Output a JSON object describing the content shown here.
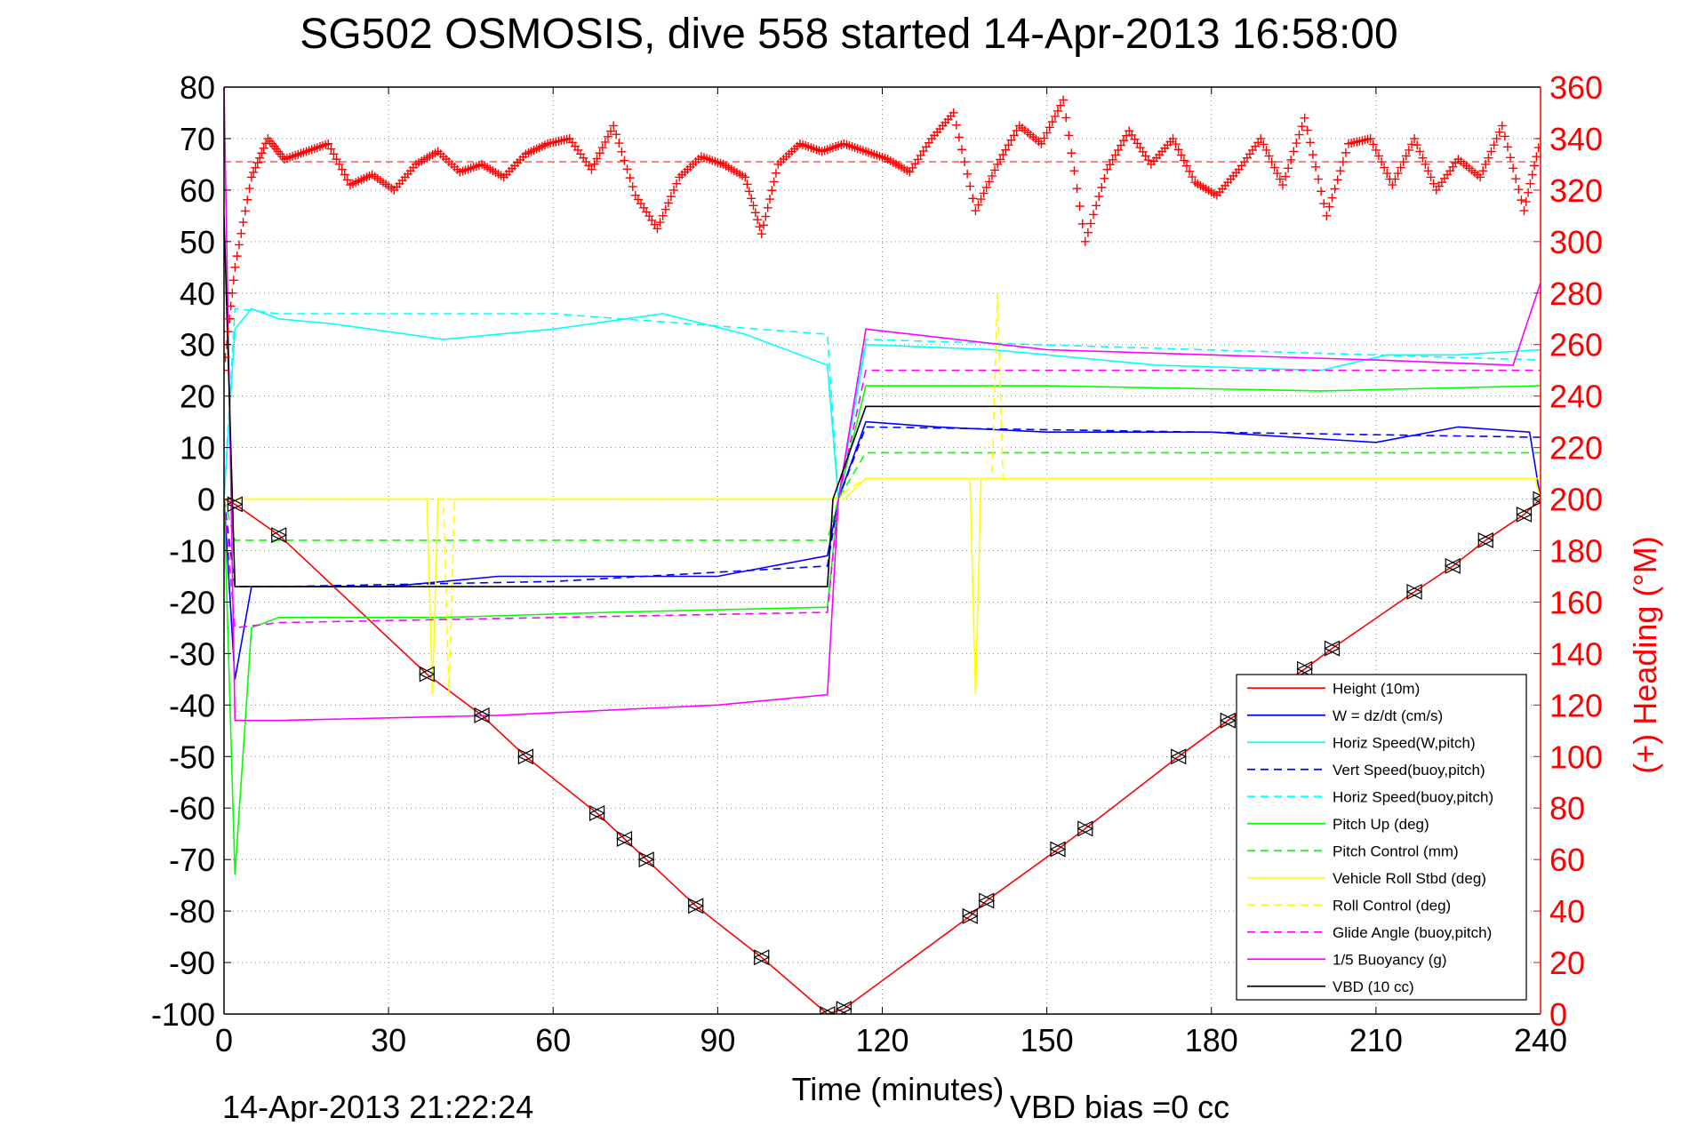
{
  "chart_data": {
    "type": "line",
    "title": "SG502 OSMOSIS, dive 558 started 14-Apr-2013 16:58:00",
    "xlabel": "Time (minutes)",
    "ylabel": "",
    "y2label": "(+) Heading (°M)",
    "footer_left": "14-Apr-2013 21:22:24",
    "footer_right": "VBD bias =0 cc",
    "xlim": [
      0,
      240
    ],
    "ylim": [
      -100,
      80
    ],
    "y2lim": [
      0,
      360
    ],
    "xticks": [
      0,
      30,
      60,
      90,
      120,
      150,
      180,
      210,
      240
    ],
    "yticks": [
      80,
      70,
      60,
      50,
      40,
      30,
      20,
      10,
      0,
      -10,
      -20,
      -30,
      -40,
      -50,
      -60,
      -70,
      -80,
      -90,
      -100
    ],
    "y2ticks": [
      360,
      340,
      320,
      300,
      280,
      260,
      240,
      220,
      200,
      180,
      160,
      140,
      120,
      100,
      80,
      60,
      40,
      20,
      0
    ],
    "grid": true,
    "legend_position": "bottom-right",
    "heading_mean": 331,
    "series": [
      {
        "name": "Height (10m)",
        "color": "#ff0000",
        "style": "solid",
        "x": [
          0,
          2,
          10,
          37,
          47,
          55,
          68,
          73,
          77,
          86,
          98,
          110,
          113,
          136,
          139,
          152,
          157,
          174,
          183,
          197,
          202,
          217,
          224,
          230,
          237,
          240
        ],
        "y": [
          0,
          -1,
          -7,
          -34,
          -42,
          -50,
          -61,
          -66,
          -70,
          -79,
          -89,
          -100,
          -99,
          -81,
          -78,
          -68,
          -64,
          -50,
          -43,
          -33,
          -29,
          -18,
          -13,
          -8,
          -3,
          0
        ]
      },
      {
        "name": "W = dz/dt (cm/s)",
        "color": "#0000ff",
        "style": "solid",
        "x": [
          0,
          2,
          5,
          10,
          30,
          50,
          70,
          90,
          100,
          110,
          112,
          117,
          130,
          150,
          180,
          210,
          225,
          238,
          240
        ],
        "y": [
          0,
          -35,
          -17,
          -17,
          -17,
          -15,
          -15,
          -15,
          -13,
          -11,
          0,
          15,
          14,
          13,
          13,
          11,
          14,
          13,
          0
        ]
      },
      {
        "name": "Horiz Speed(W,pitch)",
        "color": "#00ffff",
        "style": "solid",
        "x": [
          0,
          2,
          5,
          10,
          20,
          40,
          60,
          80,
          95,
          110,
          112,
          117,
          140,
          170,
          200,
          212,
          225,
          240
        ],
        "y": [
          0,
          33,
          37,
          35,
          34,
          31,
          33,
          36,
          32,
          26,
          0,
          30,
          29,
          26,
          25,
          28,
          28,
          29
        ]
      },
      {
        "name": "Vert Speed(buoy,pitch)",
        "color": "#0000ff",
        "style": "dashed",
        "x": [
          0,
          2,
          10,
          60,
          110,
          112,
          117,
          240
        ],
        "y": [
          0,
          -17,
          -17,
          -16,
          -13,
          0,
          14,
          12
        ]
      },
      {
        "name": "Horiz Speed(buoy,pitch)",
        "color": "#00ffff",
        "style": "dashed",
        "x": [
          0,
          2,
          10,
          60,
          110,
          112,
          117,
          240
        ],
        "y": [
          0,
          37,
          36,
          36,
          32,
          0,
          31,
          27
        ]
      },
      {
        "name": "Pitch Up (deg)",
        "color": "#00ff00",
        "style": "solid",
        "x": [
          0,
          2,
          5,
          10,
          40,
          70,
          110,
          112,
          117,
          150,
          200,
          240
        ],
        "y": [
          0,
          -73,
          -25,
          -23,
          -23,
          -22,
          -21,
          0,
          22,
          22,
          21,
          22
        ]
      },
      {
        "name": "Pitch Control (mm)",
        "color": "#00ff00",
        "style": "dashed",
        "x": [
          0,
          2,
          110,
          112,
          117,
          240
        ],
        "y": [
          0,
          -8,
          -8,
          0,
          9,
          9
        ]
      },
      {
        "name": "Vehicle Roll Stbd (deg)",
        "color": "#ffff00",
        "style": "solid",
        "x": [
          0,
          2,
          10,
          37,
          38,
          39,
          111,
          113,
          117,
          136,
          137,
          138,
          239,
          240
        ],
        "y": [
          0,
          0,
          0,
          0,
          -38,
          0,
          0,
          0,
          4,
          4,
          -38,
          4,
          4,
          0
        ]
      },
      {
        "name": "Roll Control (deg)",
        "color": "#ffff00",
        "style": "dashed",
        "x": [
          0,
          2,
          40,
          41,
          42,
          111,
          117,
          140,
          141,
          142,
          240
        ],
        "y": [
          0,
          0,
          0,
          -38,
          0,
          0,
          4,
          4,
          40,
          4,
          4
        ]
      },
      {
        "name": "Glide Angle (buoy,pitch)",
        "color": "#ff00ff",
        "style": "dashed",
        "x": [
          0,
          2,
          10,
          60,
          110,
          112,
          117,
          240
        ],
        "y": [
          0,
          -25,
          -24,
          -23,
          -22,
          0,
          25,
          25
        ]
      },
      {
        "name": "1/5 Buoyancy (g)",
        "color": "#ff00ff",
        "style": "solid",
        "x": [
          0,
          2,
          10,
          50,
          90,
          110,
          112,
          117,
          150,
          210,
          235,
          240
        ],
        "y": [
          80,
          -43,
          -43,
          -42,
          -40,
          -38,
          0,
          33,
          29,
          27,
          26,
          42
        ]
      },
      {
        "name": "VBD (10 cc)",
        "color": "#000000",
        "style": "solid",
        "x": [
          0,
          2,
          3,
          110,
          111,
          117,
          240
        ],
        "y": [
          55,
          -17,
          -17,
          -17,
          0,
          18,
          18
        ]
      }
    ],
    "heading_series": {
      "name": "Heading",
      "marker": "+",
      "color": "#ff0000",
      "x": [
        0,
        2,
        5,
        8,
        11,
        15,
        19,
        23,
        27,
        31,
        35,
        39,
        43,
        47,
        51,
        55,
        59,
        63,
        67,
        71,
        75,
        79,
        83,
        87,
        91,
        95,
        98,
        101,
        105,
        109,
        113,
        117,
        121,
        125,
        129,
        133,
        137,
        141,
        145,
        149,
        153,
        157,
        161,
        165,
        169,
        173,
        177,
        181,
        185,
        189,
        193,
        197,
        201,
        205,
        209,
        213,
        217,
        221,
        225,
        229,
        233,
        237,
        240
      ],
      "y": [
        250,
        290,
        325,
        340,
        332,
        335,
        338,
        322,
        326,
        320,
        330,
        335,
        327,
        330,
        325,
        334,
        338,
        340,
        328,
        345,
        318,
        305,
        325,
        333,
        330,
        325,
        303,
        330,
        338,
        335,
        338,
        335,
        332,
        327,
        340,
        350,
        312,
        330,
        345,
        338,
        355,
        300,
        328,
        343,
        330,
        340,
        323,
        318,
        328,
        340,
        322,
        348,
        310,
        338,
        340,
        322,
        340,
        320,
        332,
        325,
        345,
        312,
        340
      ]
    }
  }
}
